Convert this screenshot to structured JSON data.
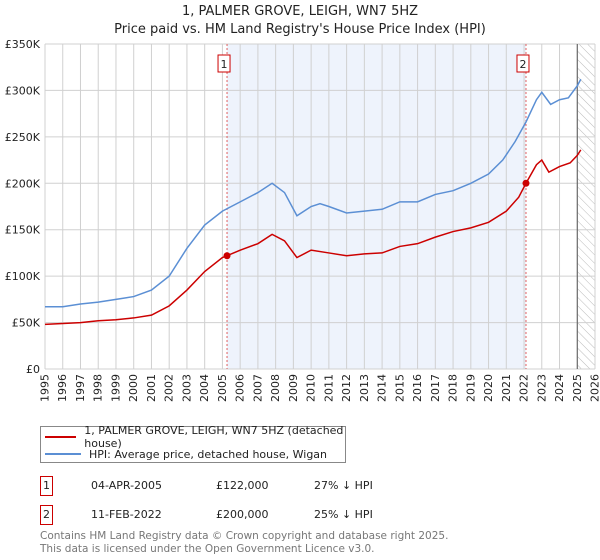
{
  "chart_data": {
    "type": "line",
    "title": "1, PALMER GROVE, LEIGH, WN7 5HZ",
    "subtitle": "Price paid vs. HM Land Registry's House Price Index (HPI)",
    "xlim": [
      1995,
      2026
    ],
    "ylim": [
      0,
      350000
    ],
    "y_ticks": [
      0,
      50000,
      100000,
      150000,
      200000,
      250000,
      300000,
      350000
    ],
    "y_tick_labels": [
      "£0",
      "£50K",
      "£100K",
      "£150K",
      "£200K",
      "£250K",
      "£300K",
      "£350K"
    ],
    "x_ticks": [
      "1995",
      "1996",
      "1997",
      "1998",
      "1999",
      "2000",
      "2001",
      "2002",
      "2003",
      "2004",
      "2005",
      "2006",
      "2007",
      "2008",
      "2009",
      "2010",
      "2011",
      "2012",
      "2013",
      "2014",
      "2015",
      "2016",
      "2017",
      "2018",
      "2019",
      "2020",
      "2021",
      "2022",
      "2023",
      "2024",
      "2025",
      "2026"
    ],
    "grid": true,
    "shaded_range": [
      2005.26,
      2022.11
    ],
    "hatched_from": 2025.0,
    "colors": {
      "property": "#cc0000",
      "hpi": "#5b8fd4",
      "shade": "#eef3fc",
      "marker": "#cc0000"
    },
    "series": [
      {
        "name": "1, PALMER GROVE, LEIGH, WN7 5HZ (detached house)",
        "color": "#cc0000",
        "x": [
          1995,
          1996,
          1997,
          1998,
          1999,
          2000,
          2001,
          2002,
          2003,
          2004,
          2005,
          2005.26,
          2006,
          2007,
          2007.8,
          2008.5,
          2009.2,
          2010,
          2011,
          2012,
          2013,
          2014,
          2015,
          2016,
          2017,
          2018,
          2019,
          2020,
          2021,
          2021.7,
          2022.11,
          2022.7,
          2023,
          2023.4,
          2024,
          2024.6,
          2025,
          2025.2
        ],
        "y": [
          48000,
          49000,
          50000,
          52000,
          53000,
          55000,
          58000,
          68000,
          85000,
          105000,
          120000,
          122000,
          128000,
          135000,
          145000,
          138000,
          120000,
          128000,
          125000,
          122000,
          124000,
          125000,
          132000,
          135000,
          142000,
          148000,
          152000,
          158000,
          170000,
          185000,
          200000,
          220000,
          225000,
          212000,
          218000,
          222000,
          230000,
          236000
        ]
      },
      {
        "name": "HPI: Average price, detached house, Wigan",
        "color": "#5b8fd4",
        "x": [
          1995,
          1996,
          1997,
          1998,
          1999,
          2000,
          2001,
          2002,
          2003,
          2004,
          2005,
          2005.5,
          2006,
          2007,
          2007.8,
          2008.5,
          2009.2,
          2010,
          2010.5,
          2011,
          2012,
          2013,
          2014,
          2015,
          2016,
          2017,
          2018,
          2019,
          2020,
          2020.8,
          2021.5,
          2022.11,
          2022.7,
          2023,
          2023.5,
          2024,
          2024.5,
          2025,
          2025.2
        ],
        "y": [
          67000,
          67000,
          70000,
          72000,
          75000,
          78000,
          85000,
          100000,
          130000,
          155000,
          170000,
          175000,
          180000,
          190000,
          200000,
          190000,
          165000,
          175000,
          178000,
          175000,
          168000,
          170000,
          172000,
          180000,
          180000,
          188000,
          192000,
          200000,
          210000,
          225000,
          245000,
          266000,
          290000,
          298000,
          285000,
          290000,
          292000,
          305000,
          312000
        ]
      }
    ],
    "annotations": [
      {
        "label": "1",
        "x": 2005.26,
        "y": 122000
      },
      {
        "label": "2",
        "x": 2022.11,
        "y": 200000
      }
    ]
  },
  "legend": {
    "property": "1, PALMER GROVE, LEIGH, WN7 5HZ (detached house)",
    "hpi": "HPI: Average price, detached house, Wigan"
  },
  "transactions": [
    {
      "num": "1",
      "date": "04-APR-2005",
      "price": "£122,000",
      "delta": "27% ↓ HPI"
    },
    {
      "num": "2",
      "date": "11-FEB-2022",
      "price": "£200,000",
      "delta": "25% ↓ HPI"
    }
  ],
  "footer": {
    "line1": "Contains HM Land Registry data © Crown copyright and database right 2025.",
    "line2": "This data is licensed under the Open Government Licence v3.0."
  }
}
